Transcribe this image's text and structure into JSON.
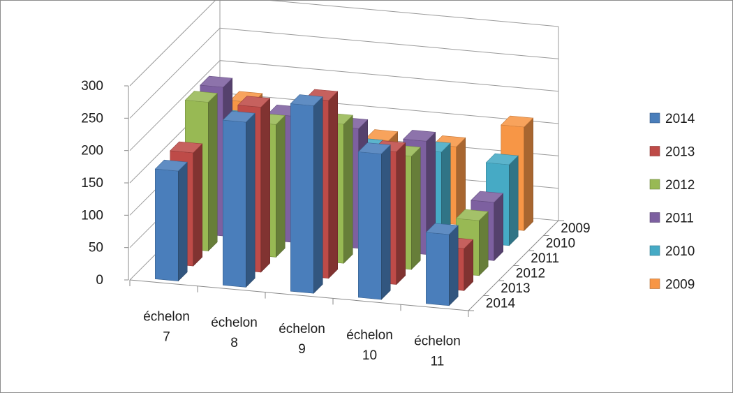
{
  "chart_data": {
    "type": "bar",
    "variant": "3d-column",
    "title": "",
    "categories": [
      "échelon 7",
      "échelon 8",
      "échelon 9",
      "échelon 10",
      "échelon 11"
    ],
    "category_labels": [
      [
        "échelon",
        "7"
      ],
      [
        "échelon",
        "8"
      ],
      [
        "échelon",
        "9"
      ],
      [
        "échelon",
        "10"
      ],
      [
        "échelon",
        "11"
      ]
    ],
    "depth_labels": [
      "2014",
      "2013",
      "2012",
      "2011",
      "2010",
      "2009"
    ],
    "series": [
      {
        "name": "2014",
        "color": "#4a7ebb",
        "values": [
          170,
          255,
          290,
          225,
          110
        ]
      },
      {
        "name": "2013",
        "color": "#be4b48",
        "values": [
          175,
          255,
          275,
          205,
          65
        ]
      },
      {
        "name": "2012",
        "color": "#98b954",
        "values": [
          230,
          205,
          215,
          175,
          85
        ]
      },
      {
        "name": "2011",
        "color": "#7d60a0",
        "values": [
          230,
          195,
          185,
          175,
          90
        ]
      },
      {
        "name": "2010",
        "color": "#46aac5",
        "values": [
          155,
          150,
          130,
          135,
          125
        ]
      },
      {
        "name": "2009",
        "color": "#f79646",
        "values": [
          160,
          135,
          120,
          120,
          160
        ]
      }
    ],
    "ylim": [
      0,
      300
    ],
    "yticks": [
      0,
      50,
      100,
      150,
      200,
      250,
      300
    ],
    "grid": true,
    "legend": "right"
  }
}
